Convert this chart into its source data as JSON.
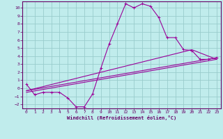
{
  "title": "",
  "xlabel": "Windchill (Refroidissement éolien,°C)",
  "ylabel": "",
  "bg_color": "#c0ecec",
  "grid_color": "#99cccc",
  "line_color": "#990099",
  "spine_color": "#660066",
  "xlim": [
    -0.5,
    23.5
  ],
  "ylim": [
    -2.5,
    10.8
  ],
  "xticks": [
    0,
    1,
    2,
    3,
    4,
    5,
    6,
    7,
    8,
    9,
    10,
    11,
    12,
    13,
    14,
    15,
    16,
    17,
    18,
    19,
    20,
    21,
    22,
    23
  ],
  "yticks": [
    -2,
    -1,
    0,
    1,
    2,
    3,
    4,
    5,
    6,
    7,
    8,
    9,
    10
  ],
  "line1_x": [
    0,
    1,
    2,
    3,
    4,
    5,
    6,
    7,
    8,
    9,
    10,
    11,
    12,
    13,
    14,
    15,
    16,
    17,
    18,
    19,
    20,
    21,
    22,
    23
  ],
  "line1_y": [
    0.5,
    -0.8,
    -0.5,
    -0.5,
    -0.5,
    -1.2,
    -2.3,
    -2.3,
    -0.7,
    2.5,
    5.5,
    8.0,
    10.5,
    10.0,
    10.5,
    10.2,
    8.8,
    6.3,
    6.3,
    4.8,
    4.7,
    3.6,
    3.6,
    3.8
  ],
  "line2_x": [
    0,
    20,
    23
  ],
  "line2_y": [
    -0.3,
    4.8,
    3.6
  ],
  "line3_x": [
    0,
    23
  ],
  "line3_y": [
    -0.3,
    3.8
  ],
  "line4_x": [
    0,
    23
  ],
  "line4_y": [
    -0.5,
    3.6
  ],
  "figsize": [
    3.2,
    2.0
  ],
  "dpi": 100
}
